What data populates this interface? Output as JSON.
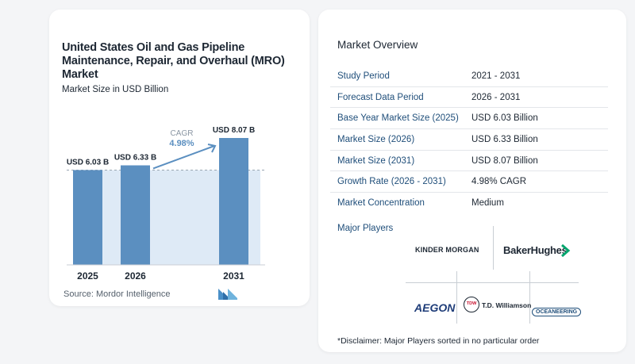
{
  "chart_data": {
    "type": "bar",
    "title": "United States Oil and Gas Pipeline Maintenance, Repair, and Overhaul (MRO) Market",
    "subtitle": "Market Size in USD Billion",
    "categories": [
      "2025",
      "2026",
      "2031"
    ],
    "values": [
      6.03,
      6.33,
      8.07
    ],
    "value_labels": [
      "USD 6.03 B",
      "USD 6.33 B",
      "USD 8.07 B"
    ],
    "cagr_label": "CAGR",
    "cagr_value": "4.98%",
    "bar_color": "#5b8fc0",
    "highlight_color": "#deeaf6",
    "accent_color": "#5b8fc0",
    "source": "Source:  Mordor Intelligence"
  },
  "overview": {
    "title": "Market Overview",
    "rows": [
      {
        "label": "Study Period",
        "value": "2021 - 2031"
      },
      {
        "label": "Forecast Data Period",
        "value": "2026 - 2031"
      },
      {
        "label": "Base Year Market Size (2025)",
        "value": "USD 6.03 Billion"
      },
      {
        "label": "Market Size (2026)",
        "value": "USD 6.33 Billion"
      },
      {
        "label": "Market Size (2031)",
        "value": "USD 8.07 Billion"
      },
      {
        "label": "Growth Rate (2026 - 2031)",
        "value": "4.98% CAGR"
      },
      {
        "label": "Market Concentration",
        "value": "Medium"
      }
    ],
    "players_title": "Major Players",
    "players": [
      "KINDER MORGAN",
      "BakerHughes",
      "AEGON",
      "TDW",
      "T.D. Williamson",
      "OCEANEERING"
    ],
    "disclaimer": "*Disclaimer: Major Players sorted in no particular order"
  }
}
